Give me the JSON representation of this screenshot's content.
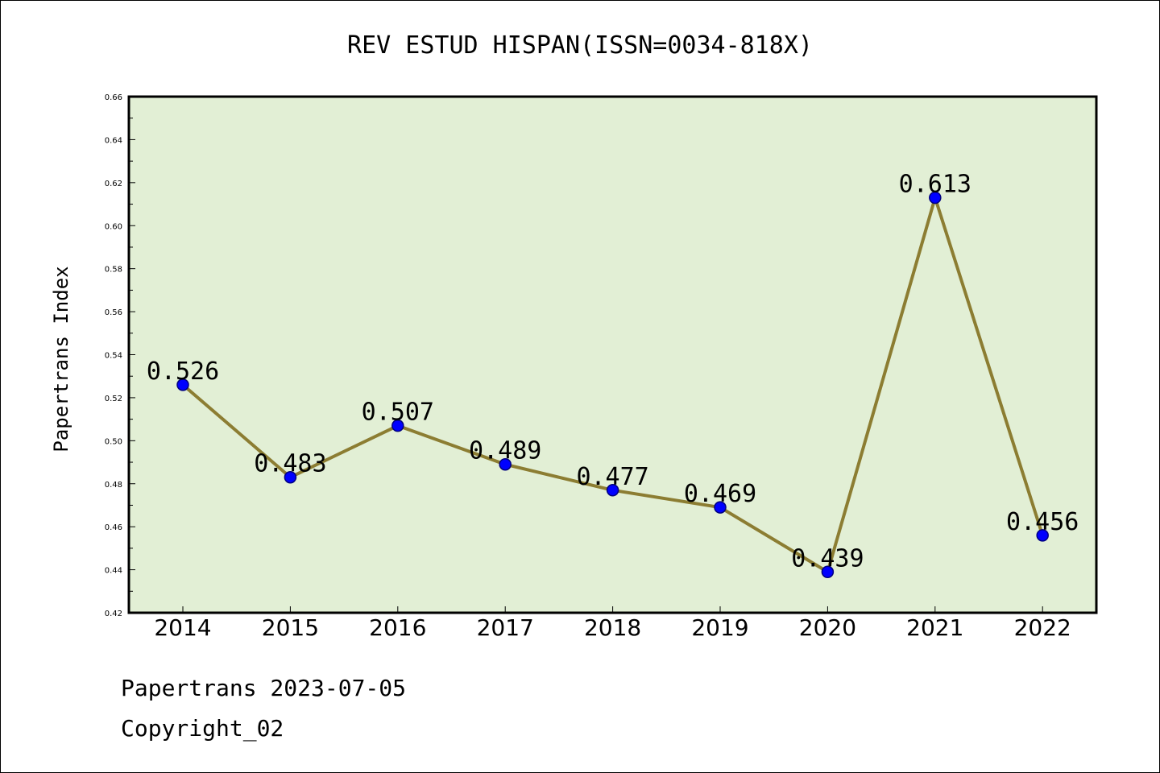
{
  "chart_data": {
    "type": "line",
    "title": "REV ESTUD HISPAN(ISSN=0034-818X)",
    "ylabel": "Papertrans Index",
    "xlabel": "",
    "x": [
      "2014",
      "2015",
      "2016",
      "2017",
      "2018",
      "2019",
      "2020",
      "2021",
      "2022"
    ],
    "series": [
      {
        "values": [
          0.526,
          0.483,
          0.507,
          0.489,
          0.477,
          0.469,
          0.439,
          0.613,
          0.456
        ],
        "data_labels": [
          "0.526",
          "0.483",
          "0.507",
          "0.489",
          "0.477",
          "0.469",
          "0.439",
          "0.613",
          "0.456"
        ]
      }
    ],
    "ylim": [
      0.42,
      0.66
    ],
    "yticks": [
      "0.42",
      "0.44",
      "0.46",
      "0.48",
      "0.50",
      "0.52",
      "0.54",
      "0.56",
      "0.58",
      "0.60",
      "0.62",
      "0.64",
      "0.66"
    ],
    "grid": false,
    "legend": "none"
  },
  "footer": {
    "line1": "Papertrans 2023-07-05",
    "line2": "Copyright_02"
  },
  "colors": {
    "plot_background": "#e2efd5",
    "line": "#8c7d32",
    "marker": "#0000ff",
    "marker_edge": "#000080"
  }
}
